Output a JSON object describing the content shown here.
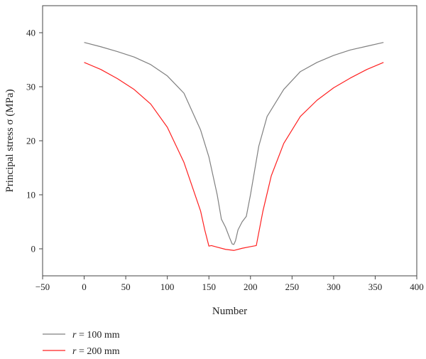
{
  "chart_data": {
    "type": "line",
    "title": "",
    "xlabel": "Number",
    "ylabel": "Principal stress σ (MPa)",
    "xlim": [
      -50,
      400
    ],
    "ylim": [
      -5,
      45
    ],
    "xticks": [
      -50,
      0,
      50,
      100,
      150,
      200,
      250,
      300,
      350,
      400
    ],
    "yticks": [
      0,
      10,
      20,
      30,
      40
    ],
    "xtick_labels": [
      "−50",
      "0",
      "50",
      "100",
      "150",
      "200",
      "250",
      "300",
      "350",
      "400"
    ],
    "ytick_labels": [
      "0",
      "10",
      "20",
      "30",
      "40"
    ],
    "grid": false,
    "legend_position": "bottom-left",
    "series": [
      {
        "name": "r = 100 mm",
        "name_var": "r",
        "name_rest": " = 100 mm",
        "color": "#808080",
        "x": [
          0,
          20,
          40,
          60,
          80,
          100,
          120,
          140,
          150,
          160,
          165,
          170,
          175,
          178,
          180,
          182,
          185,
          190,
          195,
          200,
          210,
          220,
          240,
          260,
          280,
          300,
          320,
          340,
          360
        ],
        "y": [
          38.2,
          37.4,
          36.5,
          35.5,
          34.1,
          32.0,
          28.8,
          22.0,
          17.0,
          10.0,
          5.5,
          4.0,
          2.0,
          0.9,
          0.8,
          1.5,
          3.5,
          5.0,
          6.0,
          10.0,
          19.0,
          24.5,
          29.5,
          32.8,
          34.5,
          35.8,
          36.8,
          37.5,
          38.2
        ]
      },
      {
        "name": "r = 200 mm",
        "name_var": "r",
        "name_rest": " = 200 mm",
        "color": "#ff2020",
        "x": [
          0,
          20,
          40,
          60,
          80,
          100,
          120,
          130,
          140,
          145,
          150,
          153,
          160,
          170,
          180,
          190,
          200,
          207,
          215,
          225,
          240,
          260,
          280,
          300,
          320,
          340,
          360
        ],
        "y": [
          34.5,
          33.2,
          31.5,
          29.5,
          26.8,
          22.5,
          16.0,
          11.5,
          7.0,
          3.5,
          0.5,
          0.6,
          0.3,
          -0.1,
          -0.3,
          0.1,
          0.4,
          0.6,
          7.0,
          13.5,
          19.5,
          24.5,
          27.5,
          29.8,
          31.6,
          33.2,
          34.5
        ]
      }
    ]
  }
}
